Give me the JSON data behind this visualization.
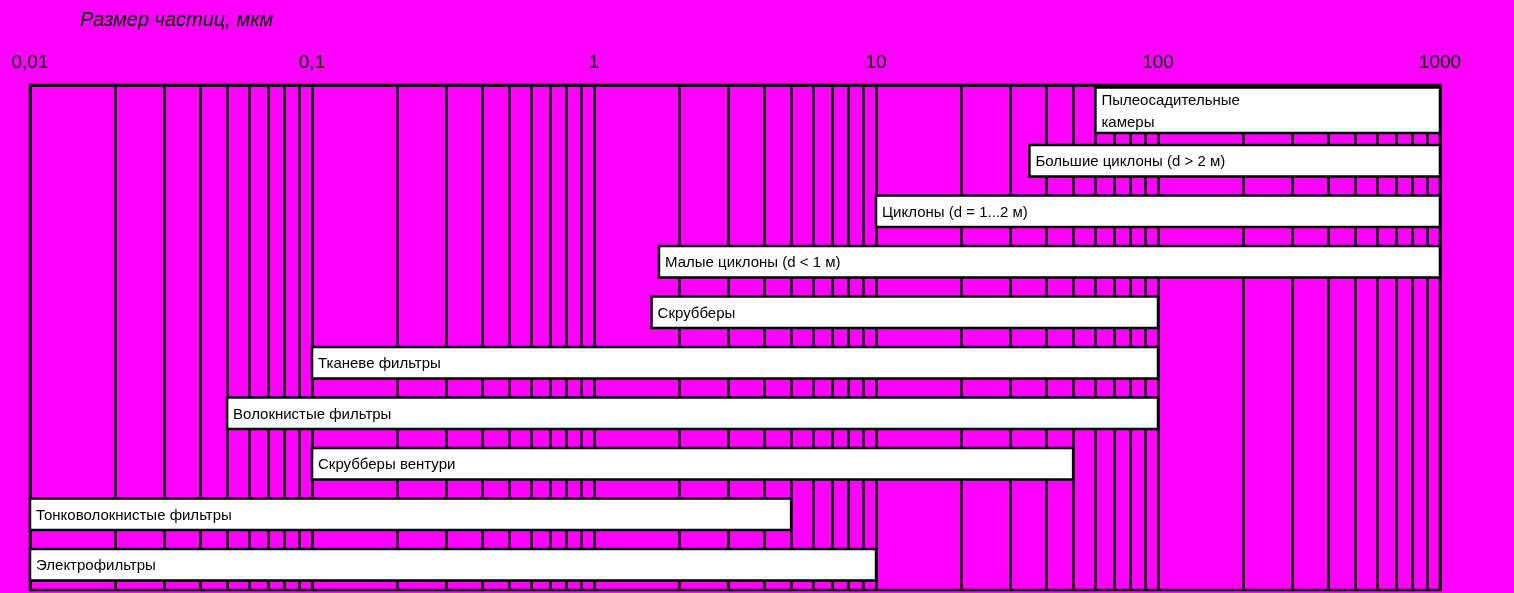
{
  "chart_data": {
    "type": "bar",
    "orientation": "horizontal",
    "xlabel": "Размер частиц, мкм",
    "categories": [
      "Пылеосадительные камеры",
      "Большие циклоны (d > 2 м)",
      "Циклоны (d = 1...2 м)",
      "Малые циклоны (d < 1 м)",
      "Скрубберы",
      "Тканеве фильтры",
      "Волокнистые фильтры",
      "Скрубберы вентури",
      "Тонковолокнистые фильтры",
      "Электрофильтры"
    ],
    "base": [
      60,
      35,
      10,
      1.7,
      1.6,
      0.1,
      0.05,
      0.1,
      0.01,
      0.01
    ],
    "values": [
      940,
      965,
      990,
      998.3,
      98.4,
      99.9,
      99.95,
      49.9,
      4.99,
      9.99
    ],
    "color": "#ffffff",
    "log": "x",
    "grid": "x",
    "xlim": [
      0.01,
      1000
    ],
    "xticks": [
      {
        "value": 0.01,
        "label": "0,01"
      },
      {
        "value": 0.02,
        "label": null
      },
      {
        "value": 0.03,
        "label": null
      },
      {
        "value": 0.04,
        "label": null
      },
      {
        "value": 0.05,
        "label": null
      },
      {
        "value": 0.06,
        "label": null
      },
      {
        "value": 0.07,
        "label": null
      },
      {
        "value": 0.08,
        "label": null
      },
      {
        "value": 0.09,
        "label": null
      },
      {
        "value": 0.1,
        "label": "0,1"
      },
      {
        "value": 0.2,
        "label": null
      },
      {
        "value": 0.3,
        "label": null
      },
      {
        "value": 0.4,
        "label": null
      },
      {
        "value": 0.5,
        "label": null
      },
      {
        "value": 0.6,
        "label": null
      },
      {
        "value": 0.7,
        "label": null
      },
      {
        "value": 0.8,
        "label": null
      },
      {
        "value": 0.9,
        "label": null
      },
      1,
      {
        "value": 2,
        "label": null
      },
      {
        "value": 3,
        "label": null
      },
      {
        "value": 4,
        "label": null
      },
      {
        "value": 5,
        "label": null
      },
      {
        "value": 6,
        "label": null
      },
      {
        "value": 7,
        "label": null
      },
      {
        "value": 8,
        "label": null
      },
      {
        "value": 9,
        "label": null
      },
      10,
      {
        "value": 20,
        "label": null
      },
      {
        "value": 30,
        "label": null
      },
      {
        "value": 40,
        "label": null
      },
      {
        "value": 50,
        "label": null
      },
      {
        "value": 60,
        "label": null
      },
      {
        "value": 70,
        "label": null
      },
      {
        "value": 80,
        "label": null
      },
      {
        "value": 90,
        "label": null
      },
      100,
      {
        "value": 200,
        "label": null
      },
      {
        "value": 300,
        "label": null
      },
      {
        "value": 400,
        "label": null
      },
      {
        "value": 500,
        "label": null
      },
      {
        "value": 600,
        "label": null
      },
      {
        "value": 700,
        "label": null
      },
      {
        "value": 800,
        "label": null
      },
      {
        "value": 900,
        "label": null
      },
      1000
    ]
  }
}
